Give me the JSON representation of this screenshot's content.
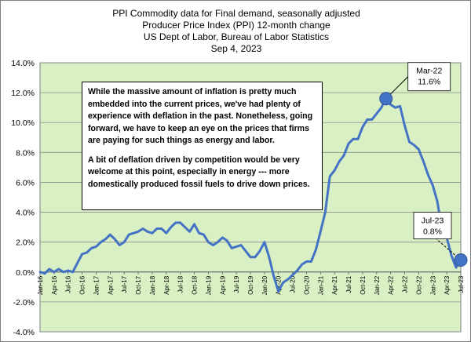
{
  "chart_data": {
    "type": "line",
    "title_lines": [
      "PPI Commodity data for Final demand, seasonally adjusted",
      "Producer Price Index (PPI) 12-month change",
      "US Dept of Labor, Bureau of Labor Statistics",
      "Sep 4, 2023"
    ],
    "xlabel": "",
    "ylabel": "",
    "ylim": [
      -4.0,
      14.0
    ],
    "y_ticks": [
      "-4.0%",
      "-2.0%",
      "0.0%",
      "2.0%",
      "4.0%",
      "6.0%",
      "8.0%",
      "10.0%",
      "12.0%",
      "14.0%"
    ],
    "x_tick_labels": [
      "Jan-16",
      "Apr-16",
      "Jul-16",
      "Oct-16",
      "Jan-17",
      "Apr-17",
      "Jul-17",
      "Oct-17",
      "Jan-18",
      "Apr-18",
      "Jul-18",
      "Oct-18",
      "Jan-19",
      "Apr-19",
      "Jul-19",
      "Oct-19",
      "Jan-20",
      "Apr-20",
      "Jul-20",
      "Oct-20",
      "Jan-21",
      "Apr-21",
      "Jul-21",
      "Oct-21",
      "Jan-22",
      "Apr-22",
      "Jul-22",
      "Oct-22",
      "Jan-23",
      "Apr-23",
      "Jul-23"
    ],
    "grid": true,
    "plot_background": "#d9f0c4",
    "series": [
      {
        "color": "#4472c4",
        "x": [
          "Jan-16",
          "Feb-16",
          "Mar-16",
          "Apr-16",
          "May-16",
          "Jun-16",
          "Jul-16",
          "Aug-16",
          "Sep-16",
          "Oct-16",
          "Nov-16",
          "Dec-16",
          "Jan-17",
          "Feb-17",
          "Mar-17",
          "Apr-17",
          "May-17",
          "Jun-17",
          "Jul-17",
          "Aug-17",
          "Sep-17",
          "Oct-17",
          "Nov-17",
          "Dec-17",
          "Jan-18",
          "Feb-18",
          "Mar-18",
          "Apr-18",
          "May-18",
          "Jun-18",
          "Jul-18",
          "Aug-18",
          "Sep-18",
          "Oct-18",
          "Nov-18",
          "Dec-18",
          "Jan-19",
          "Feb-19",
          "Mar-19",
          "Apr-19",
          "May-19",
          "Jun-19",
          "Jul-19",
          "Aug-19",
          "Sep-19",
          "Oct-19",
          "Nov-19",
          "Dec-19",
          "Jan-20",
          "Feb-20",
          "Mar-20",
          "Apr-20",
          "May-20",
          "Jun-20",
          "Jul-20",
          "Aug-20",
          "Sep-20",
          "Oct-20",
          "Nov-20",
          "Dec-20",
          "Jan-21",
          "Feb-21",
          "Mar-21",
          "Apr-21",
          "May-21",
          "Jun-21",
          "Jul-21",
          "Aug-21",
          "Sep-21",
          "Oct-21",
          "Nov-21",
          "Dec-21",
          "Jan-22",
          "Feb-22",
          "Mar-22",
          "Apr-22",
          "May-22",
          "Jun-22",
          "Jul-22",
          "Aug-22",
          "Sep-22",
          "Oct-22",
          "Nov-22",
          "Dec-22",
          "Jan-23",
          "Feb-23",
          "Mar-23",
          "Apr-23",
          "May-23",
          "Jun-23",
          "Jul-23"
        ],
        "values": [
          0.0,
          -0.1,
          0.2,
          0.0,
          0.2,
          0.0,
          0.1,
          0.0,
          0.6,
          1.2,
          1.3,
          1.6,
          1.7,
          2.0,
          2.2,
          2.5,
          2.2,
          1.8,
          2.0,
          2.5,
          2.6,
          2.7,
          2.9,
          2.7,
          2.6,
          2.9,
          2.9,
          2.6,
          3.0,
          3.3,
          3.3,
          3.0,
          2.7,
          3.2,
          2.6,
          2.5,
          2.0,
          1.8,
          2.0,
          2.3,
          2.1,
          1.6,
          1.7,
          1.8,
          1.4,
          1.0,
          1.0,
          1.4,
          2.0,
          1.0,
          -0.3,
          -1.3,
          -0.7,
          -0.5,
          -0.2,
          0.1,
          0.5,
          0.7,
          0.7,
          1.5,
          2.7,
          4.0,
          6.4,
          6.8,
          7.4,
          7.8,
          8.6,
          8.9,
          8.9,
          9.7,
          10.2,
          10.2,
          10.6,
          11.0,
          11.6,
          11.2,
          11.0,
          11.1,
          9.8,
          8.7,
          8.5,
          8.2,
          7.4,
          6.5,
          5.8,
          4.7,
          2.7,
          2.3,
          1.1,
          0.3,
          0.8
        ]
      }
    ],
    "annotations": [
      {
        "date": "Mar-22",
        "value": 11.6,
        "label_lines": [
          "Mar-22",
          "11.6%"
        ]
      },
      {
        "date": "Jul-23",
        "value": 0.8,
        "label_lines": [
          "Jul-23",
          "0.8%"
        ]
      }
    ],
    "note": {
      "paragraphs": [
        "While the massive amount of inflation is pretty much embedded into the current prices, we've had plenty of experience with deflation in the past.  Nonetheless, going forward, we have to keep an eye on the prices that firms are paying for such things as energy and labor.",
        "A bit of deflation driven by competition would be very welcome at this point, especially in energy --- more domestically produced fossil fuels to drive down prices."
      ]
    }
  }
}
